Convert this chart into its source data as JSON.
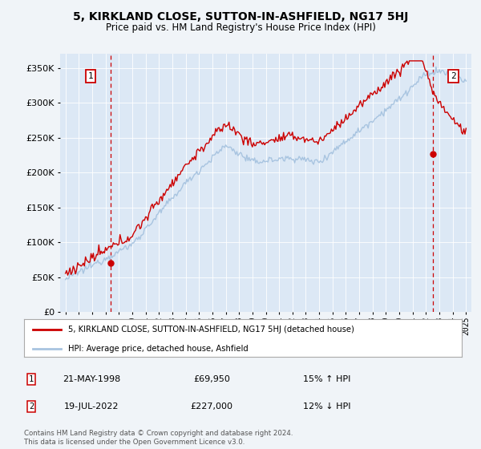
{
  "title": "5, KIRKLAND CLOSE, SUTTON-IN-ASHFIELD, NG17 5HJ",
  "subtitle": "Price paid vs. HM Land Registry's House Price Index (HPI)",
  "legend_line1": "5, KIRKLAND CLOSE, SUTTON-IN-ASHFIELD, NG17 5HJ (detached house)",
  "legend_line2": "HPI: Average price, detached house, Ashfield",
  "annotation1_date": "21-MAY-1998",
  "annotation1_price": "£69,950",
  "annotation1_hpi": "15% ↑ HPI",
  "annotation2_date": "19-JUL-2022",
  "annotation2_price": "£227,000",
  "annotation2_hpi": "12% ↓ HPI",
  "footer": "Contains HM Land Registry data © Crown copyright and database right 2024.\nThis data is licensed under the Open Government Licence v3.0.",
  "hpi_color": "#a8c4e0",
  "price_color": "#cc0000",
  "annotation_color": "#cc0000",
  "background_color": "#f0f4f8",
  "plot_bg_color": "#dce8f5",
  "ylim": [
    0,
    370000
  ],
  "yticks": [
    0,
    50000,
    100000,
    150000,
    200000,
    250000,
    300000,
    350000
  ],
  "sale1_x": 1998.39,
  "sale1_y": 69950,
  "sale2_x": 2022.54,
  "sale2_y": 227000,
  "xlim_left": 1994.6,
  "xlim_right": 2025.4
}
